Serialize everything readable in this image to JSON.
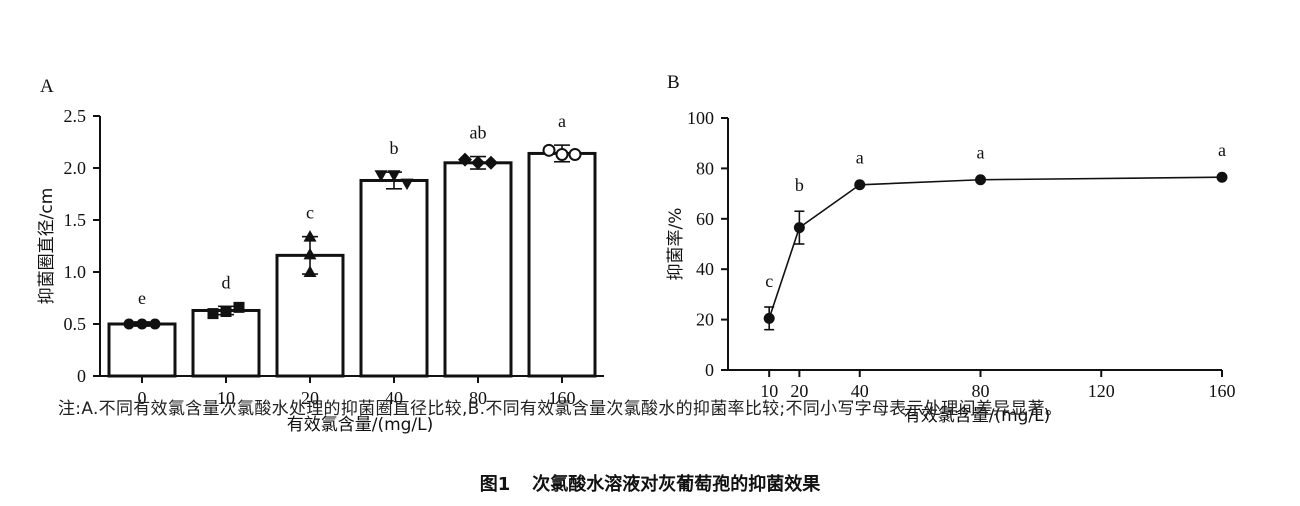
{
  "chart_data": [
    {
      "type": "bar",
      "panel_label": "A",
      "categories": [
        "0",
        "10",
        "20",
        "40",
        "80",
        "160"
      ],
      "values": [
        0.5,
        0.63,
        1.16,
        1.88,
        2.05,
        2.14
      ],
      "errors": [
        0.02,
        0.04,
        0.18,
        0.08,
        0.06,
        0.08
      ],
      "replicates": [
        [
          0.5,
          0.5,
          0.5
        ],
        [
          0.6,
          0.62,
          0.66
        ],
        [
          1.34,
          1.17,
          1.0
        ],
        [
          1.93,
          1.93,
          1.85
        ],
        [
          2.08,
          2.05,
          2.05
        ],
        [
          2.17,
          2.13,
          2.13
        ]
      ],
      "markers": [
        "circle",
        "square",
        "triangle-up",
        "triangle-down",
        "diamond",
        "circle-open"
      ],
      "significance": [
        "e",
        "d",
        "c",
        "b",
        "ab",
        "a"
      ],
      "xlabel": "有效氯含量/(mg/L)",
      "ylabel": "抑菌圈直径/cm",
      "ylim": [
        0,
        2.5
      ],
      "yticks": [
        "0",
        "0.5",
        "1.0",
        "1.5",
        "2.0",
        "2.5"
      ],
      "grid": false
    },
    {
      "type": "line",
      "panel_label": "B",
      "x": [
        10,
        20,
        40,
        80,
        160
      ],
      "y": [
        20.5,
        56.5,
        73.5,
        75.5,
        76.5
      ],
      "errors": [
        4.5,
        6.5,
        0.5,
        0.5,
        0.5
      ],
      "significance": [
        "c",
        "b",
        "a",
        "a",
        "a"
      ],
      "xticks": [
        "10",
        "20",
        "40",
        "80",
        "120",
        "160"
      ],
      "xtick_values": [
        10,
        20,
        40,
        80,
        120,
        160
      ],
      "xlabel": "有效氯含量/(mg/L)",
      "ylabel": "抑菌率/%",
      "ylim": [
        0,
        100
      ],
      "yticks": [
        "0",
        "20",
        "40",
        "60",
        "80",
        "100"
      ],
      "grid": false
    }
  ],
  "note": "注:A.不同有效氯含量次氯酸水处理的抑菌圈直径比较,B.不同有效氯含量次氯酸水的抑菌率比较;不同小写字母表示处理间差异显著。",
  "caption": {
    "number": "图1",
    "title": "次氯酸水溶液对灰葡萄孢的抑菌效果"
  }
}
